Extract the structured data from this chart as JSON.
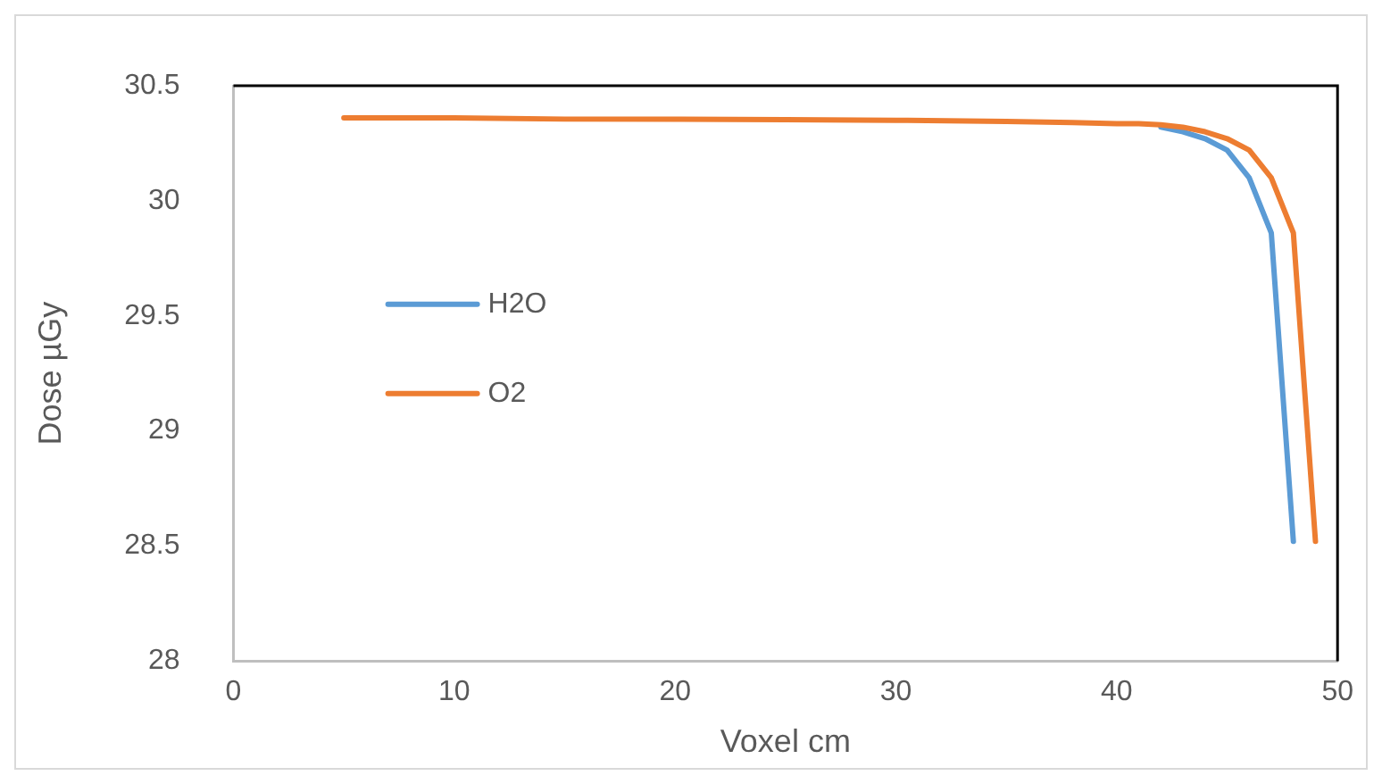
{
  "chart_data": {
    "type": "line",
    "xlabel": "Voxel cm",
    "ylabel": "Dose µGy",
    "xlim": [
      0,
      50
    ],
    "xticks": [
      0,
      10,
      20,
      30,
      40,
      50
    ],
    "ylim": [
      28,
      30.5
    ],
    "yticks": [
      28,
      28.5,
      29,
      29.5,
      30,
      30.5
    ],
    "grid": false,
    "legend": "left",
    "marker": "none",
    "line_style": "solid",
    "series": [
      {
        "name": "H2O",
        "color": "#5b9bd5",
        "x": [
          42,
          43,
          44,
          45,
          46,
          47,
          48
        ],
        "values": [
          30.32,
          30.3,
          30.27,
          30.22,
          30.1,
          29.86,
          28.52
        ]
      },
      {
        "name": "O2",
        "color": "#ed7d31",
        "x": [
          5,
          10,
          15,
          20,
          25,
          30,
          35,
          38,
          40,
          41,
          42,
          43,
          44,
          45,
          46,
          47,
          48,
          49
        ],
        "values": [
          30.36,
          30.36,
          30.355,
          30.355,
          30.353,
          30.35,
          30.345,
          30.34,
          30.335,
          30.335,
          30.33,
          30.32,
          30.3,
          30.27,
          30.22,
          30.1,
          29.86,
          28.52
        ]
      }
    ]
  }
}
